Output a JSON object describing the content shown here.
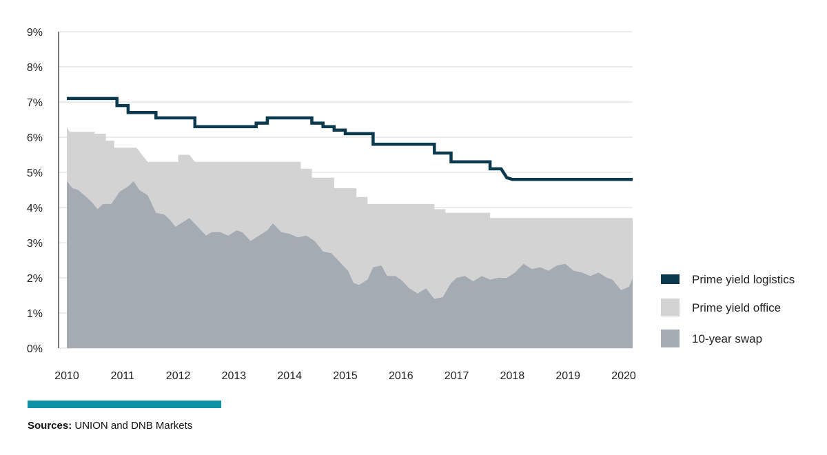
{
  "chart_data": {
    "type": "area",
    "y_ticks": [
      "0%",
      "1%",
      "2%",
      "3%",
      "4%",
      "5%",
      "6%",
      "7%",
      "8%",
      "9%"
    ],
    "x_ticks": [
      "2010",
      "2011",
      "2012",
      "2013",
      "2014",
      "2015",
      "2016",
      "2017",
      "2018",
      "2019",
      "2020"
    ],
    "ylim": [
      0,
      9
    ],
    "xlim": [
      2010,
      2020.5
    ],
    "grid": "horizontal",
    "legend_position": "right",
    "series": [
      {
        "name": "Prime yield logistics",
        "kind": "line",
        "color": "#0b3a4e",
        "points": [
          [
            2010.0,
            7.1
          ],
          [
            2010.9,
            7.1
          ],
          [
            2010.9,
            6.9
          ],
          [
            2011.1,
            6.9
          ],
          [
            2011.1,
            6.7
          ],
          [
            2011.6,
            6.7
          ],
          [
            2011.6,
            6.55
          ],
          [
            2012.3,
            6.55
          ],
          [
            2012.3,
            6.3
          ],
          [
            2013.4,
            6.3
          ],
          [
            2013.4,
            6.4
          ],
          [
            2013.6,
            6.4
          ],
          [
            2013.6,
            6.55
          ],
          [
            2014.4,
            6.55
          ],
          [
            2014.4,
            6.4
          ],
          [
            2014.6,
            6.4
          ],
          [
            2014.6,
            6.3
          ],
          [
            2014.8,
            6.3
          ],
          [
            2014.8,
            6.2
          ],
          [
            2015.0,
            6.2
          ],
          [
            2015.0,
            6.1
          ],
          [
            2015.5,
            6.1
          ],
          [
            2015.5,
            5.8
          ],
          [
            2016.6,
            5.8
          ],
          [
            2016.6,
            5.55
          ],
          [
            2016.9,
            5.55
          ],
          [
            2016.9,
            5.3
          ],
          [
            2017.6,
            5.3
          ],
          [
            2017.6,
            5.1
          ],
          [
            2017.8,
            5.1
          ],
          [
            2017.9,
            4.85
          ],
          [
            2018.0,
            4.8
          ],
          [
            2020.5,
            4.8
          ]
        ]
      },
      {
        "name": "Prime yield office",
        "kind": "area",
        "color": "#d3d3d3",
        "points": [
          [
            2010.0,
            6.3
          ],
          [
            2010.05,
            6.15
          ],
          [
            2010.5,
            6.15
          ],
          [
            2010.5,
            6.1
          ],
          [
            2010.7,
            6.1
          ],
          [
            2010.7,
            5.9
          ],
          [
            2010.85,
            5.9
          ],
          [
            2010.85,
            5.7
          ],
          [
            2011.25,
            5.7
          ],
          [
            2011.45,
            5.3
          ],
          [
            2012.0,
            5.3
          ],
          [
            2012.0,
            5.5
          ],
          [
            2012.2,
            5.5
          ],
          [
            2012.3,
            5.3
          ],
          [
            2014.2,
            5.3
          ],
          [
            2014.2,
            5.1
          ],
          [
            2014.4,
            5.1
          ],
          [
            2014.4,
            4.85
          ],
          [
            2014.8,
            4.85
          ],
          [
            2014.8,
            4.55
          ],
          [
            2015.2,
            4.55
          ],
          [
            2015.2,
            4.3
          ],
          [
            2015.4,
            4.3
          ],
          [
            2015.4,
            4.1
          ],
          [
            2016.6,
            4.1
          ],
          [
            2016.6,
            3.95
          ],
          [
            2016.8,
            3.95
          ],
          [
            2016.8,
            3.85
          ],
          [
            2017.6,
            3.85
          ],
          [
            2017.6,
            3.7
          ],
          [
            2020.5,
            3.7
          ]
        ]
      },
      {
        "name": "10-year swap",
        "kind": "area",
        "color": "#a4abb2",
        "points": [
          [
            2010.0,
            4.75
          ],
          [
            2010.1,
            4.55
          ],
          [
            2010.2,
            4.5
          ],
          [
            2010.35,
            4.3
          ],
          [
            2010.45,
            4.15
          ],
          [
            2010.55,
            3.95
          ],
          [
            2010.65,
            4.1
          ],
          [
            2010.8,
            4.1
          ],
          [
            2010.95,
            4.45
          ],
          [
            2011.1,
            4.6
          ],
          [
            2011.2,
            4.75
          ],
          [
            2011.3,
            4.5
          ],
          [
            2011.45,
            4.35
          ],
          [
            2011.6,
            3.85
          ],
          [
            2011.75,
            3.8
          ],
          [
            2011.85,
            3.65
          ],
          [
            2011.95,
            3.45
          ],
          [
            2012.05,
            3.55
          ],
          [
            2012.2,
            3.7
          ],
          [
            2012.35,
            3.45
          ],
          [
            2012.5,
            3.2
          ],
          [
            2012.6,
            3.3
          ],
          [
            2012.75,
            3.3
          ],
          [
            2012.9,
            3.2
          ],
          [
            2013.05,
            3.35
          ],
          [
            2013.15,
            3.3
          ],
          [
            2013.3,
            3.05
          ],
          [
            2013.45,
            3.2
          ],
          [
            2013.6,
            3.35
          ],
          [
            2013.7,
            3.55
          ],
          [
            2013.85,
            3.3
          ],
          [
            2014.0,
            3.25
          ],
          [
            2014.15,
            3.15
          ],
          [
            2014.3,
            3.2
          ],
          [
            2014.45,
            3.05
          ],
          [
            2014.6,
            2.75
          ],
          [
            2014.75,
            2.7
          ],
          [
            2014.9,
            2.45
          ],
          [
            2015.05,
            2.2
          ],
          [
            2015.15,
            1.85
          ],
          [
            2015.25,
            1.8
          ],
          [
            2015.4,
            1.95
          ],
          [
            2015.5,
            2.3
          ],
          [
            2015.65,
            2.35
          ],
          [
            2015.75,
            2.05
          ],
          [
            2015.9,
            2.05
          ],
          [
            2016.0,
            1.95
          ],
          [
            2016.15,
            1.7
          ],
          [
            2016.3,
            1.55
          ],
          [
            2016.45,
            1.7
          ],
          [
            2016.6,
            1.4
          ],
          [
            2016.75,
            1.45
          ],
          [
            2016.9,
            1.85
          ],
          [
            2017.0,
            2.0
          ],
          [
            2017.15,
            2.05
          ],
          [
            2017.3,
            1.9
          ],
          [
            2017.45,
            2.05
          ],
          [
            2017.6,
            1.95
          ],
          [
            2017.75,
            2.0
          ],
          [
            2017.9,
            2.0
          ],
          [
            2018.05,
            2.15
          ],
          [
            2018.2,
            2.4
          ],
          [
            2018.35,
            2.25
          ],
          [
            2018.5,
            2.3
          ],
          [
            2018.65,
            2.2
          ],
          [
            2018.8,
            2.35
          ],
          [
            2018.95,
            2.4
          ],
          [
            2019.1,
            2.2
          ],
          [
            2019.25,
            2.15
          ],
          [
            2019.4,
            2.05
          ],
          [
            2019.55,
            2.15
          ],
          [
            2019.7,
            2.0
          ],
          [
            2019.8,
            1.95
          ],
          [
            2019.95,
            1.65
          ],
          [
            2020.1,
            1.75
          ],
          [
            2020.25,
            2.0
          ],
          [
            2020.4,
            2.05
          ],
          [
            2020.5,
            1.95
          ]
        ]
      }
    ],
    "legend": [
      {
        "name": "Prime yield logistics",
        "color": "#0b3a4e"
      },
      {
        "name": "Prime yield office",
        "color": "#d3d3d3"
      },
      {
        "name": "10-year swap",
        "color": "#a4abb2"
      }
    ]
  },
  "accent_color": "#0e93a5",
  "sources": {
    "label": "Sources:",
    "text": " UNION and DNB Markets"
  }
}
